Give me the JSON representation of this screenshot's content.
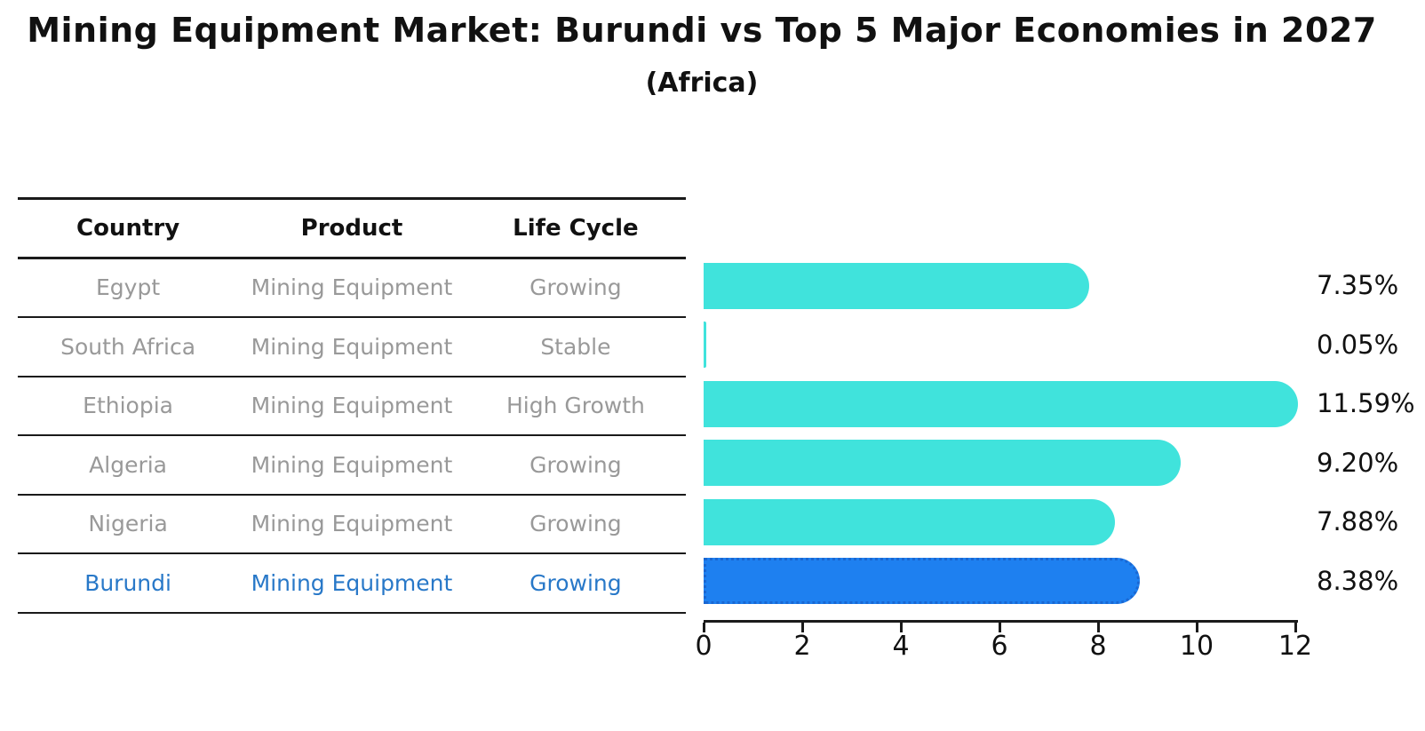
{
  "header": {
    "title": "Mining Equipment Market: Burundi vs Top 5 Major Economies in 2027",
    "subtitle": "(Africa)"
  },
  "table": {
    "columns": [
      "Country",
      "Product",
      "Life Cycle"
    ],
    "rows": [
      {
        "country": "Egypt",
        "product": "Mining Equipment",
        "life_cycle": "Growing"
      },
      {
        "country": "South Africa",
        "product": "Mining Equipment",
        "life_cycle": "Stable"
      },
      {
        "country": "Ethiopia",
        "product": "Mining Equipment",
        "life_cycle": "High Growth"
      },
      {
        "country": "Algeria",
        "product": "Mining Equipment",
        "life_cycle": "Growing"
      },
      {
        "country": "Nigeria",
        "product": "Mining Equipment",
        "life_cycle": "Growing"
      },
      {
        "country": "Burundi",
        "product": "Mining Equipment",
        "life_cycle": "Growing"
      }
    ],
    "highlight_row": 5
  },
  "chart_data": {
    "type": "bar",
    "orientation": "horizontal",
    "title": "Mining Equipment Market: Burundi vs Top 5 Major Economies in 2027",
    "subtitle": "(Africa)",
    "categories": [
      "Egypt",
      "South Africa",
      "Ethiopia",
      "Algeria",
      "Nigeria",
      "Burundi"
    ],
    "values": [
      7.35,
      0.05,
      11.59,
      9.2,
      7.88,
      8.38
    ],
    "labels": [
      "7.35%",
      "0.05%",
      "11.59%",
      "9.20%",
      "7.88%",
      "8.38%"
    ],
    "xlim": [
      0,
      12
    ],
    "xticks": [
      0,
      2,
      4,
      6,
      8,
      10,
      12
    ],
    "grid": false,
    "legend": false,
    "highlight_index": 5,
    "bar_color": "#40E3DC",
    "highlight_color": "#1E80F0",
    "highlight_border": "#1A67D2"
  },
  "colors": {
    "background": "#FFFFFF",
    "text": "#111111",
    "muted_text": "#999999",
    "table_line": "#1A1A1A",
    "highlight_text": "#2878C8"
  }
}
